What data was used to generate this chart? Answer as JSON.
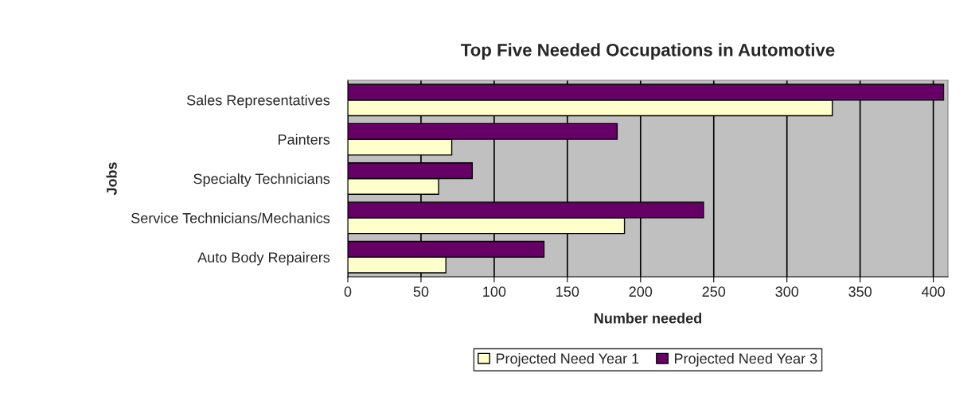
{
  "chart_data": {
    "type": "bar",
    "orientation": "horizontal",
    "title": "Top Five Needed Occupations in Automotive",
    "xlabel": "Number needed",
    "ylabel": "Jobs",
    "categories": [
      "Sales Representatives",
      "Painters",
      "Specialty Technicians",
      "Service Technicians/Mechanics",
      "Auto Body Repairers"
    ],
    "series": [
      {
        "name": "Projected Need Year 1",
        "color": "#ffffcc",
        "values": [
          331,
          71,
          62,
          189,
          67
        ]
      },
      {
        "name": "Projected Need Year 3",
        "color": "#660066",
        "values": [
          407,
          184,
          85,
          243,
          134
        ]
      }
    ],
    "xlim": [
      0,
      410
    ],
    "xticks": [
      0,
      50,
      100,
      150,
      200,
      250,
      300,
      350,
      400
    ],
    "grid": "x",
    "legend": "bottom"
  }
}
